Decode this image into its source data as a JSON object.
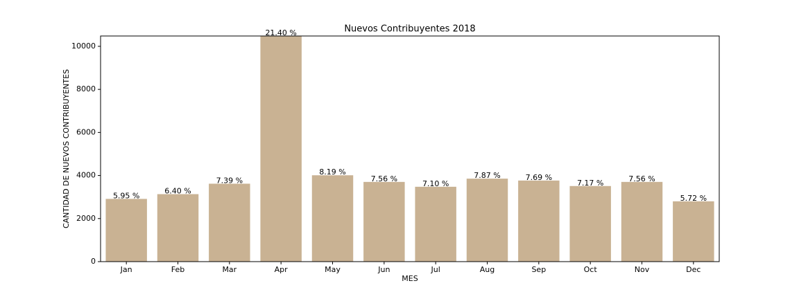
{
  "chart_data": {
    "type": "bar",
    "title": "Nuevos Contribuyentes 2018",
    "x_label": "MES",
    "y_label": "CANTIDAD DE NUEVOS CONTRIBUYENTES",
    "categories": [
      "Jan",
      "Feb",
      "Mar",
      "Apr",
      "May",
      "Jun",
      "Jul",
      "Aug",
      "Sep",
      "Oct",
      "Nov",
      "Dec"
    ],
    "values": [
      2914,
      3134,
      3619,
      10480,
      4011,
      3702,
      3477,
      3854,
      3766,
      3511,
      3702,
      2801
    ],
    "bar_labels": [
      "5.95 %",
      "6.40 %",
      "7.39 %",
      "21.40 %",
      "8.19 %",
      "7.56 %",
      "7.10 %",
      "7.87 %",
      "7.69 %",
      "7.17 %",
      "7.56 %",
      "5.72 %"
    ],
    "color": "#c9b293",
    "ylim": [
      0,
      10480
    ],
    "yticks": [
      0,
      2000,
      4000,
      6000,
      8000,
      10000
    ],
    "grid": false
  }
}
